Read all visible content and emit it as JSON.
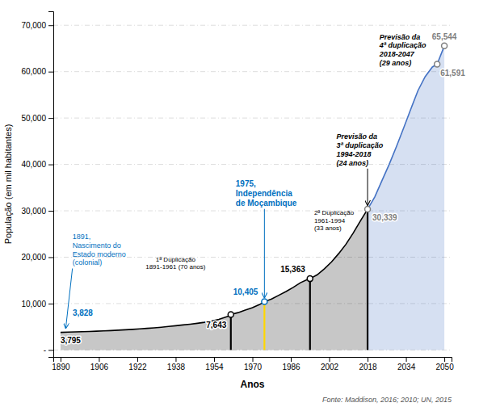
{
  "chart_data": {
    "type": "area",
    "xlabel": "Anos",
    "ylabel": "População (em mil habitantes)",
    "source": "Fonte: Maddison, 2016; 2010; UN, 2015",
    "xlim": [
      1887,
      2053
    ],
    "ylim": [
      -1500,
      73000
    ],
    "xticks": [
      1890,
      1906,
      1922,
      1938,
      1954,
      1970,
      1986,
      2002,
      2018,
      2034,
      2050
    ],
    "yticks": [
      {
        "value": 0,
        "label": "-"
      },
      {
        "value": 10000,
        "label": "10,000"
      },
      {
        "value": 20000,
        "label": "20,000"
      },
      {
        "value": 30000,
        "label": "30,000"
      },
      {
        "value": 40000,
        "label": "40,000"
      },
      {
        "value": 50000,
        "label": "50,000"
      },
      {
        "value": 60000,
        "label": "60,000"
      },
      {
        "value": 70000,
        "label": "70,000"
      }
    ],
    "grid": true,
    "series": [
      {
        "type": "area",
        "color": "#000000",
        "x": [
          1890,
          1893,
          1896,
          1899,
          1902,
          1905,
          1908,
          1911,
          1914,
          1917,
          1920,
          1923,
          1926,
          1929,
          1932,
          1935,
          1938,
          1941,
          1944,
          1947,
          1950,
          1953,
          1956,
          1958,
          1960,
          1961,
          1964,
          1967,
          1970,
          1973,
          1975,
          1978,
          1981,
          1984,
          1987,
          1990,
          1993,
          1994,
          1997,
          2000,
          2003,
          2006,
          2009,
          2012,
          2015,
          2018
        ],
        "values": [
          3795,
          3840,
          3885,
          3935,
          3988,
          4045,
          4110,
          4180,
          4260,
          4345,
          4435,
          4540,
          4650,
          4775,
          4910,
          5060,
          5225,
          5390,
          5560,
          5750,
          5970,
          6240,
          6580,
          6940,
          7280,
          7643,
          8050,
          8600,
          9100,
          9800,
          10405,
          11000,
          11800,
          12600,
          13500,
          14500,
          15200,
          15363,
          16200,
          17500,
          19000,
          20800,
          22800,
          25200,
          27800,
          30339
        ]
      },
      {
        "type": "area",
        "color": "#4472C4",
        "x": [
          2018,
          2021,
          2024,
          2027,
          2030,
          2033,
          2036,
          2039,
          2042,
          2045,
          2047,
          2050
        ],
        "values": [
          30339,
          33000,
          36500,
          40000,
          43800,
          47800,
          51900,
          55900,
          58900,
          61000,
          61591,
          65544
        ]
      }
    ],
    "points": [
      {
        "x": 1890,
        "y": 3795,
        "label": "3,795",
        "color": "#000000"
      },
      {
        "x": 1891,
        "y": 3828,
        "label": "3,828",
        "color": "#0070C0"
      },
      {
        "x": 1961,
        "y": 7643,
        "label": "7,643",
        "color": "#000000",
        "marker": "circle",
        "line_color": "#000000"
      },
      {
        "x": 1975,
        "y": 10405,
        "label": "10,405",
        "color": "#0070C0",
        "marker": "circle",
        "line_color": "#FFD700"
      },
      {
        "x": 1994,
        "y": 15363,
        "label": "15,363",
        "color": "#000000",
        "marker": "circle",
        "line_color": "#000000"
      },
      {
        "x": 2018,
        "y": 30339,
        "label": "30,339",
        "color": "#808080",
        "marker": "circle",
        "line_color": "#000000"
      },
      {
        "x": 2047,
        "y": 61591,
        "label": "61,591",
        "color": "#808080",
        "marker": "circle"
      },
      {
        "x": 2050,
        "y": 65544,
        "label": "65,544",
        "color": "#808080",
        "marker": "circle"
      }
    ],
    "annotations": [
      {
        "text": [
          "1891,",
          "Nascimento do",
          "Estado moderno",
          "(colonial)"
        ],
        "x": 1892,
        "y": 3850,
        "color": "#0070C0"
      },
      {
        "text": [
          "1ª Duplicação",
          "1891-1961 (70 anos)"
        ],
        "color": "#000000"
      },
      {
        "text": [
          "1975,",
          "Independência",
          "de Moçambique"
        ],
        "x": 1975,
        "y": 10405,
        "color": "#0070C0"
      },
      {
        "text": [
          "2ª Duplicação",
          "1961-1994",
          "(33 anos)"
        ],
        "color": "#000000"
      },
      {
        "text": [
          "Previsão da",
          "3ª duplicação",
          "1994-2018",
          "(24 anos)"
        ],
        "x": 2018,
        "y": 30339,
        "color": "#000000"
      },
      {
        "text": [
          "Previsão da",
          "4ª duplicação",
          "2018-2047",
          "(29 anos)"
        ],
        "color": "#000000"
      }
    ]
  }
}
